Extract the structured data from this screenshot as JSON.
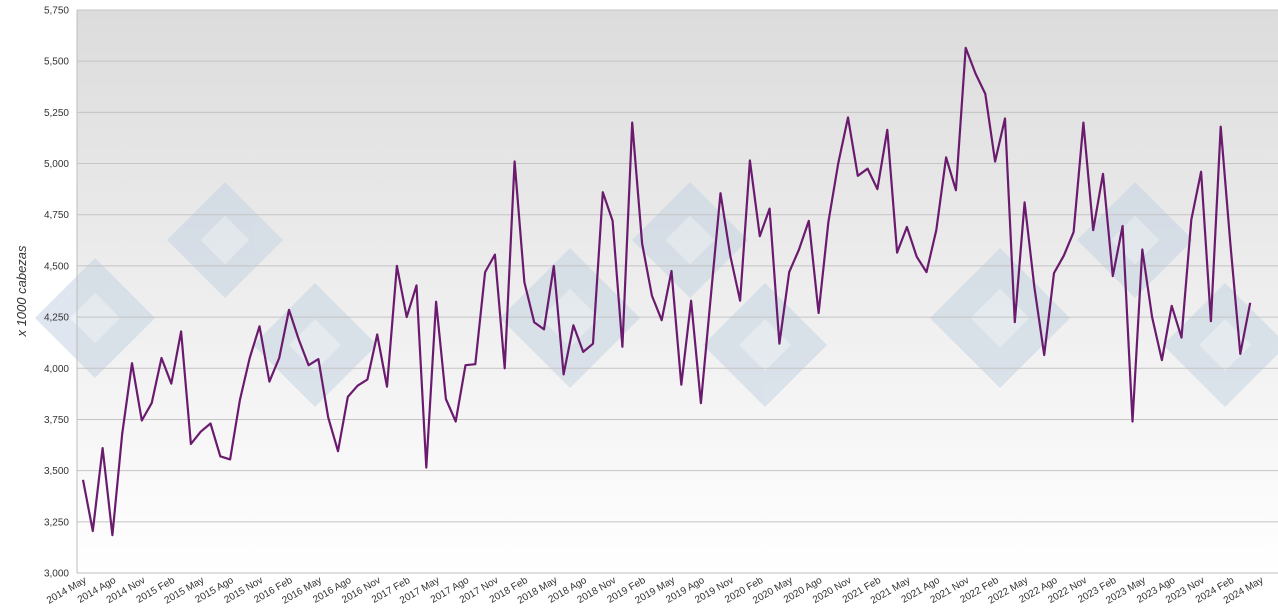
{
  "chart_data": {
    "type": "line",
    "title": "",
    "xlabel": "",
    "ylabel": "x 1000 cabezas",
    "ylim": [
      3000,
      5750
    ],
    "y_ticks": [
      "3,000",
      "3,250",
      "3,500",
      "3,750",
      "4,000",
      "4,250",
      "4,500",
      "4,750",
      "5,000",
      "5,250",
      "5,500",
      "5,750"
    ],
    "grid": true,
    "legend": "none",
    "x_tick_labels": [
      "2014 May",
      "2014 Ago",
      "2014 Nov",
      "2015 Feb",
      "2015 May",
      "2015 Ago",
      "2015 Nov",
      "2016 Feb",
      "2016 May",
      "2016 Ago",
      "2016 Nov",
      "2017 Feb",
      "2017 May",
      "2017 Ago",
      "2017 Nov",
      "2018 Feb",
      "2018 May",
      "2018 Ago",
      "2018 Nov",
      "2019 Feb",
      "2019 May",
      "2019 Ago",
      "2019 Nov",
      "2020 Feb",
      "2020 May",
      "2020 Ago",
      "2020 Nov",
      "2021 Feb",
      "2021 May",
      "2021 Ago",
      "2021 Nov",
      "2022 Feb",
      "2022 May",
      "2022 Ago",
      "2022 Nov",
      "2023 Feb",
      "2023 May",
      "2023 Ago",
      "2023 Nov",
      "2024 Feb",
      "2024 May"
    ],
    "series": [
      {
        "color": "#6a1b6e",
        "values": [
          3455,
          3205,
          3610,
          3185,
          3680,
          4025,
          3745,
          3830,
          4050,
          3925,
          4180,
          3630,
          3690,
          3730,
          3570,
          3555,
          3845,
          4050,
          4205,
          3935,
          4050,
          4285,
          4140,
          4015,
          4045,
          3760,
          3595,
          3860,
          3915,
          3945,
          4165,
          3910,
          4500,
          4250,
          4405,
          3515,
          4325,
          3850,
          3740,
          4015,
          4020,
          4470,
          4555,
          4000,
          5010,
          4420,
          4225,
          4190,
          4500,
          3970,
          4210,
          4080,
          4120,
          4860,
          4720,
          4105,
          5200,
          4610,
          4355,
          4235,
          4475,
          3920,
          4330,
          3830,
          4345,
          4855,
          4550,
          4330,
          5015,
          4645,
          4780,
          4120,
          4470,
          4580,
          4720,
          4270,
          4715,
          5000,
          5225,
          4940,
          4975,
          4875,
          5165,
          4565,
          4690,
          4545,
          4470,
          4675,
          5030,
          4870,
          5565,
          5440,
          5340,
          5010,
          5220,
          4225,
          4810,
          4395,
          4065,
          4465,
          4550,
          4665,
          5200,
          4675,
          4950,
          4450,
          4695,
          3740,
          4580,
          4250,
          4040,
          4305,
          4150,
          4725,
          4960,
          4230,
          5180,
          4600,
          4070,
          4320
        ]
      }
    ]
  }
}
